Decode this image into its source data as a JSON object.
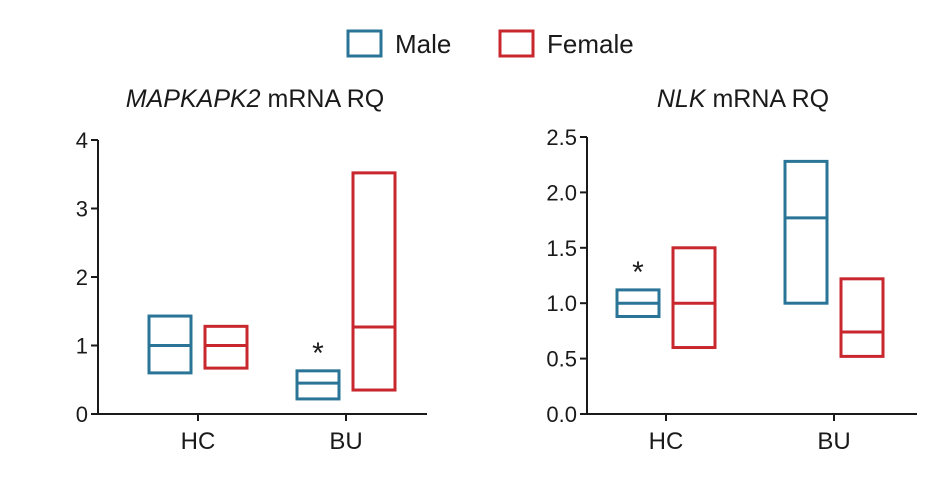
{
  "legend": [
    {
      "name": "Male",
      "color": "#2a7497"
    },
    {
      "name": "Female",
      "color": "#c8282d"
    }
  ],
  "chart_data": [
    {
      "type": "floating_bar",
      "title_italic": "MAPKAPK2",
      "title_rest": " mRNA RQ",
      "categories": [
        "HC",
        "BU"
      ],
      "ylim": [
        0,
        4
      ],
      "yticks": [
        0,
        1,
        2,
        3,
        4
      ],
      "ytick_labels": [
        "0",
        "1",
        "2",
        "3",
        "4"
      ],
      "series": [
        {
          "name": "Male",
          "color": "#2a7497",
          "boxes": [
            {
              "low": 0.6,
              "mid": 1.0,
              "high": 1.43
            },
            {
              "low": 0.22,
              "mid": 0.45,
              "high": 0.63
            }
          ]
        },
        {
          "name": "Female",
          "color": "#c8282d",
          "boxes": [
            {
              "low": 0.67,
              "mid": 1.0,
              "high": 1.28
            },
            {
              "low": 0.35,
              "mid": 1.27,
              "high": 3.52
            }
          ]
        }
      ],
      "annotations": [
        {
          "text": "*",
          "category": "BU",
          "series": "Male"
        }
      ]
    },
    {
      "type": "floating_bar",
      "title_italic": "NLK",
      "title_rest": " mRNA RQ",
      "categories": [
        "HC",
        "BU"
      ],
      "ylim": [
        0,
        2.5
      ],
      "yticks": [
        0,
        0.5,
        1.0,
        1.5,
        2.0,
        2.5
      ],
      "ytick_labels": [
        "0.0",
        "0.5",
        "1.0",
        "1.5",
        "2.0",
        "2.5"
      ],
      "series": [
        {
          "name": "Male",
          "color": "#2a7497",
          "boxes": [
            {
              "low": 0.88,
              "mid": 1.0,
              "high": 1.12
            },
            {
              "low": 1.0,
              "mid": 1.77,
              "high": 2.28
            }
          ]
        },
        {
          "name": "Female",
          "color": "#c8282d",
          "boxes": [
            {
              "low": 0.6,
              "mid": 1.0,
              "high": 1.5
            },
            {
              "low": 0.52,
              "mid": 0.74,
              "high": 1.22
            }
          ]
        }
      ],
      "annotations": [
        {
          "text": "*",
          "category": "HC",
          "series": "Male"
        }
      ]
    }
  ]
}
